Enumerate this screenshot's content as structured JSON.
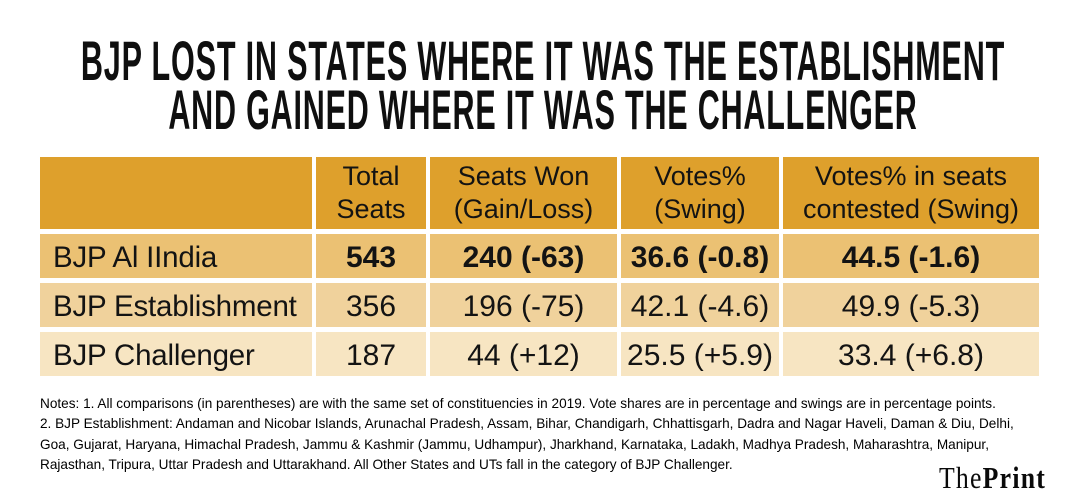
{
  "title": {
    "line1": "BJP LOST IN STATES WHERE IT WAS THE ESTABLISHMENT",
    "line2": "AND GAINED WHERE IT WAS THE CHALLENGER"
  },
  "table": {
    "headers": [
      {
        "lines": [
          "",
          ""
        ]
      },
      {
        "lines": [
          "Total",
          "Seats"
        ]
      },
      {
        "lines": [
          "Seats Won",
          "(Gain/Loss)"
        ]
      },
      {
        "lines": [
          "Votes%",
          "(Swing)"
        ]
      },
      {
        "lines": [
          "Votes% in seats",
          "contested (Swing)"
        ]
      }
    ],
    "rows": [
      {
        "label": "BJP Al IIndia",
        "total_seats": "543",
        "seats_won": "240 (-63)",
        "votes_pct": "36.6 (-0.8)",
        "votes_pct_contested": "44.5 (-1.6)",
        "emphasis": true
      },
      {
        "label": "BJP Establishment",
        "total_seats": "356",
        "seats_won": "196 (-75)",
        "votes_pct": "42.1 (-4.6)",
        "votes_pct_contested": "49.9 (-5.3)",
        "emphasis": false
      },
      {
        "label": "BJP Challenger",
        "total_seats": "187",
        "seats_won": "44 (+12)",
        "votes_pct": "25.5 (+5.9)",
        "votes_pct_contested": "33.4 (+6.8)",
        "emphasis": false
      }
    ]
  },
  "notes": {
    "lines": [
      "Notes: 1. All comparisons (in parentheses) are with the same set of constituencies in 2019. Vote shares are in percentage and swings are in percentage points.",
      "2. BJP Establishment: Andaman and Nicobar Islands, Arunachal Pradesh, Assam, Bihar, Chandigarh, Chhattisgarh, Dadra and Nagar Haveli, Daman & Diu, Delhi,",
      "Goa, Gujarat, Haryana, Himachal Pradesh, Jammu & Kashmir (Jammu, Udhampur), Jharkhand, Karnataka, Ladakh, Madhya Pradesh, Maharashtra, Manipur,",
      "Rajasthan, Tripura, Uttar Pradesh and Uttarakhand. All Other States and UTs fall in the category of BJP Challenger."
    ]
  },
  "logo": {
    "the": "The",
    "print": "Print"
  },
  "colors": {
    "header_bg": "#dea02c",
    "row1_bg": "#ebc173",
    "row2_bg": "#f0d29c",
    "row3_bg": "#f7e5c2",
    "text": "#131313",
    "background": "#ffffff"
  },
  "chart_data": {
    "type": "table",
    "title": "BJP LOST IN STATES WHERE IT WAS THE ESTABLISHMENT AND GAINED WHERE IT WAS THE CHALLENGER",
    "columns": [
      "",
      "Total Seats",
      "Seats Won (Gain/Loss)",
      "Votes% (Swing)",
      "Votes% in seats contested (Swing)"
    ],
    "rows": [
      [
        "BJP Al IIndia",
        "543",
        "240 (-63)",
        "36.6 (-0.8)",
        "44.5 (-1.6)"
      ],
      [
        "BJP Establishment",
        "356",
        "196 (-75)",
        "42.1 (-4.6)",
        "49.9 (-5.3)"
      ],
      [
        "BJP Challenger",
        "187",
        "44 (+12)",
        "25.5 (+5.9)",
        "33.4 (+6.8)"
      ]
    ],
    "notes": "Notes: 1. All comparisons (in parentheses) are with the same set of constituencies in 2019. Vote shares are in percentage and swings are in percentage points. 2. BJP Establishment: Andaman and Nicobar Islands, Arunachal Pradesh, Assam, Bihar, Chandigarh, Chhattisgarh, Dadra and Nagar Haveli, Daman & Diu, Delhi, Goa, Gujarat, Haryana, Himachal Pradesh, Jammu & Kashmir (Jammu, Udhampur), Jharkhand, Karnataka, Ladakh, Madhya Pradesh, Maharashtra, Manipur, Rajasthan, Tripura, Uttar Pradesh and Uttarakhand. All Other States and UTs fall in the category of BJP Challenger.",
    "source_logo": "ThePrint"
  }
}
